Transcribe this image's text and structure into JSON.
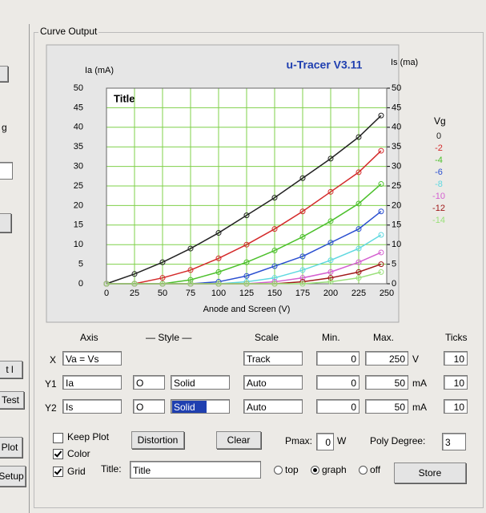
{
  "chart_data": {
    "type": "line",
    "title": "u-Tracer V3.11",
    "plot_title": "Title",
    "y_label": "Ia (mA)",
    "y2_label": "Is (ma)",
    "x_label": "Anode and Screen (V)",
    "legend_title": "Vg",
    "x": [
      0,
      25,
      50,
      75,
      100,
      125,
      150,
      175,
      200,
      225,
      245
    ],
    "xlim": [
      0,
      250
    ],
    "xticks": [
      0,
      25,
      50,
      75,
      100,
      125,
      150,
      175,
      200,
      225,
      250
    ],
    "ylim": [
      0,
      50
    ],
    "yticks": [
      0,
      5,
      10,
      15,
      20,
      25,
      30,
      35,
      40,
      45,
      50
    ],
    "y2lim": [
      0,
      50
    ],
    "y2ticks": [
      0,
      5,
      10,
      15,
      20,
      25,
      30,
      35,
      40,
      45,
      50
    ],
    "grid": true,
    "grid_color": "#7fd04a",
    "series": [
      {
        "name": "0",
        "color": "#222222",
        "values": [
          0,
          2.5,
          5.5,
          9,
          13,
          17.5,
          22,
          27,
          32,
          37.5,
          43
        ]
      },
      {
        "name": "-2",
        "color": "#d42a2a",
        "values": [
          0,
          0,
          1.5,
          3.5,
          6.5,
          10,
          14,
          18.5,
          23.5,
          28.5,
          34
        ]
      },
      {
        "name": "-4",
        "color": "#4cc02c",
        "values": [
          0,
          0,
          0,
          1,
          3,
          5.5,
          8.5,
          12,
          16,
          20.5,
          25.5
        ]
      },
      {
        "name": "-6",
        "color": "#2a4fd0",
        "values": [
          0,
          0,
          0,
          0,
          0.5,
          2,
          4.5,
          7,
          10.5,
          14,
          18.5
        ]
      },
      {
        "name": "-8",
        "color": "#5fd8e0",
        "values": [
          0,
          0,
          0,
          0,
          0,
          0.5,
          1.5,
          3.5,
          6,
          9,
          12.5
        ]
      },
      {
        "name": "-10",
        "color": "#d45fd0",
        "values": [
          0,
          0,
          0,
          0,
          0,
          0,
          0.5,
          1.5,
          3,
          5.5,
          8
        ]
      },
      {
        "name": "-12",
        "color": "#a01818",
        "values": [
          0,
          0,
          0,
          0,
          0,
          0,
          0,
          0.5,
          1.5,
          3,
          5
        ]
      },
      {
        "name": "-14",
        "color": "#9ae07a",
        "values": [
          0,
          0,
          0,
          0,
          0,
          0,
          0,
          0,
          0.5,
          1.5,
          3
        ]
      }
    ]
  },
  "ui": {
    "group_title": "Curve Output",
    "left_labels": [
      "g",
      "t l",
      "Test",
      "Plot",
      "Setup"
    ],
    "headers": [
      "Axis",
      "— Style —",
      "Scale",
      "Min.",
      "Max.",
      "Ticks"
    ],
    "rows": [
      {
        "axis": "X",
        "quantity": "Va = Vs",
        "scale": "Track",
        "min": "0",
        "max": "250",
        "unit": "V",
        "ticks": "10"
      },
      {
        "axis": "Y1",
        "quantity": "Ia",
        "marker": "O",
        "style": "Solid",
        "scale": "Auto",
        "min": "0",
        "max": "50",
        "unit": "mA",
        "ticks": "10"
      },
      {
        "axis": "Y2",
        "quantity": "Is",
        "marker": "O",
        "style": "Solid",
        "scale": "Auto",
        "min": "0",
        "max": "50",
        "unit": "mA",
        "ticks": "10"
      }
    ],
    "keep_plot": "Keep Plot",
    "color": "Color",
    "grid": "Grid",
    "distortion": "Distortion",
    "clear": "Clear",
    "pmax_label": "Pmax:",
    "pmax": "0",
    "pmax_unit": "W",
    "poly_label": "Poly Degree:",
    "poly": "3",
    "title_label": "Title:",
    "title_value": "Title",
    "radio_top": "top",
    "radio_graph": "graph",
    "radio_off": "off",
    "store": "Store"
  }
}
